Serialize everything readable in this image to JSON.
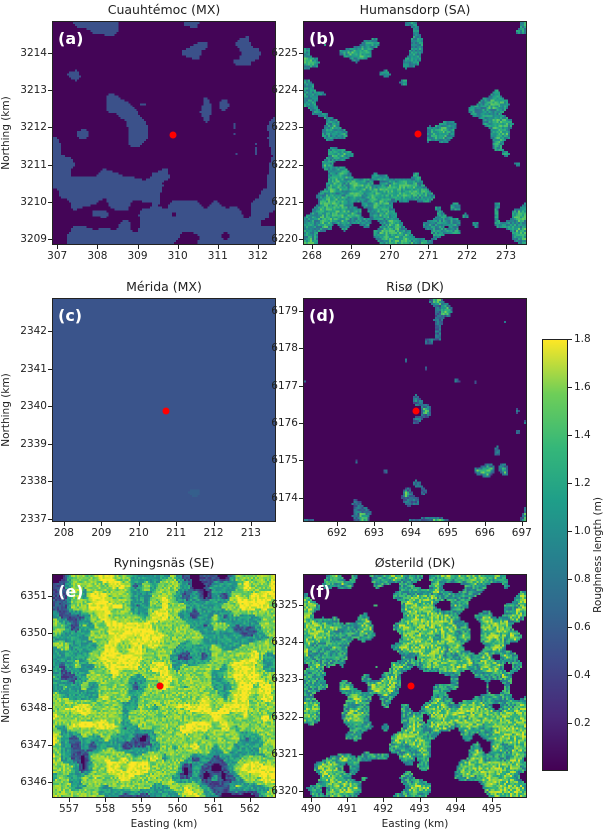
{
  "chart_data": {
    "type": "heatmap",
    "colorbar": {
      "label": "Roughness length (m)",
      "range": [
        0,
        1.8
      ],
      "ticks": [
        "0.2",
        "0.4",
        "0.6",
        "0.8",
        "1.0",
        "1.2",
        "1.4",
        "1.6",
        "1.8"
      ],
      "colormap": "viridis"
    },
    "site_marker_color": "#ff0000",
    "panels": [
      {
        "letter": "(a)",
        "title": "Cuauhtémoc (MX)",
        "xlabel": "",
        "ylabel": "Northing (km)",
        "xlim": [
          306.87,
          312.45
        ],
        "ylim": [
          3208.85,
          3214.85
        ],
        "xticks": [
          "307",
          "308",
          "309",
          "310",
          "311",
          "312"
        ],
        "yticks": [
          "3209",
          "3210",
          "3211",
          "3212",
          "3213",
          "3214"
        ],
        "site": [
          309.85,
          3211.83
        ]
      },
      {
        "letter": "(b)",
        "title": "Humansdorp (SA)",
        "xlabel": "",
        "ylabel": "",
        "xlim": [
          267.77,
          273.54
        ],
        "ylim": [
          6219.84,
          6225.86
        ],
        "xticks": [
          "268",
          "269",
          "270",
          "271",
          "272",
          "273"
        ],
        "yticks": [
          "6220",
          "6221",
          "6222",
          "6223",
          "6224",
          "6225"
        ],
        "site": [
          270.7,
          6222.85
        ]
      },
      {
        "letter": "(c)",
        "title": "Mérida (MX)",
        "xlabel": "",
        "ylabel": "Northing (km)",
        "xlim": [
          207.68,
          213.67
        ],
        "ylim": [
          2336.92,
          2342.88
        ],
        "xticks": [
          "208",
          "209",
          "210",
          "211",
          "212",
          "213"
        ],
        "yticks": [
          "2337",
          "2338",
          "2339",
          "2340",
          "2341",
          "2342"
        ],
        "site": [
          210.7,
          2339.9
        ]
      },
      {
        "letter": "(d)",
        "title": "Risø (DK)",
        "xlabel": "",
        "ylabel": "",
        "xlim": [
          691.08,
          697.14
        ],
        "ylim": [
          6173.35,
          6179.35
        ],
        "xticks": [
          "692",
          "693",
          "694",
          "695",
          "696",
          "697"
        ],
        "yticks": [
          "6174",
          "6175",
          "6176",
          "6177",
          "6178",
          "6179"
        ],
        "site": [
          694.1,
          6176.35
        ]
      },
      {
        "letter": "(e)",
        "title": "Ryningsnäs (SE)",
        "xlabel": "Easting (km)",
        "ylabel": "Northing (km)",
        "xlim": [
          556.53,
          562.72
        ],
        "ylim": [
          6345.57,
          6351.59
        ],
        "xticks": [
          "557",
          "558",
          "559",
          "560",
          "561",
          "562"
        ],
        "yticks": [
          "6346",
          "6347",
          "6348",
          "6349",
          "6350",
          "6351"
        ],
        "site": [
          559.5,
          6348.6
        ]
      },
      {
        "letter": "(f)",
        "title": "Østerild (DK)",
        "xlabel": "Easting (km)",
        "ylabel": "",
        "xlim": [
          489.78,
          495.97
        ],
        "ylim": [
          6319.81,
          6325.83
        ],
        "xticks": [
          "490",
          "491",
          "492",
          "493",
          "494",
          "495"
        ],
        "yticks": [
          "6320",
          "6321",
          "6322",
          "6323",
          "6324",
          "6325"
        ],
        "site": [
          492.75,
          6322.85
        ]
      }
    ]
  }
}
